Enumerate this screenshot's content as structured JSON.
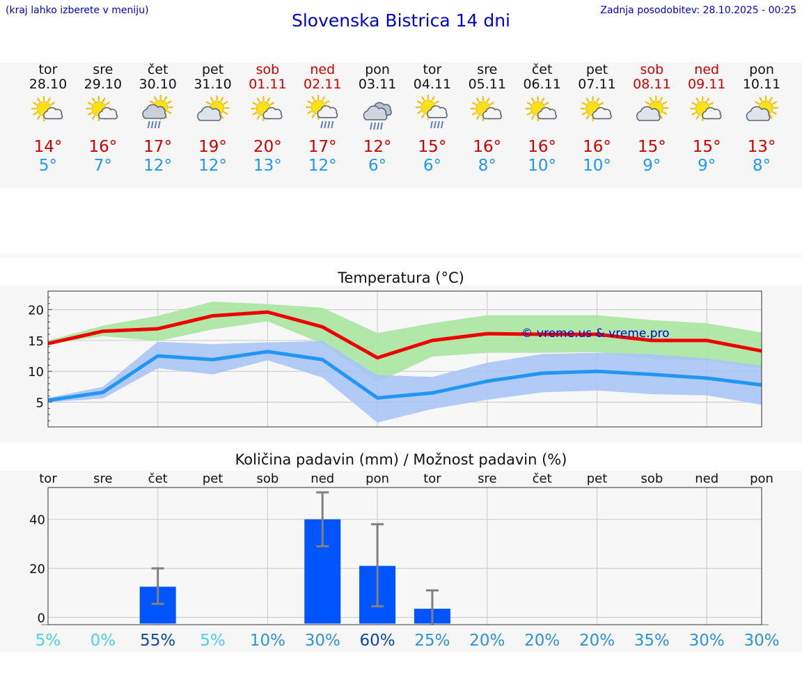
{
  "header": {
    "left_note": "(kraj lahko izberete v meniju)",
    "title": "Slovenska Bistrica 14 dni",
    "updated": "Zadnja posodobitev: 28.10.2025 - 00:25"
  },
  "days": [
    {
      "name": "tor",
      "date": "28.10",
      "icon": "sun-cloud-icon",
      "max": "14°",
      "min": "5°",
      "weekend": false
    },
    {
      "name": "sre",
      "date": "29.10",
      "icon": "sun-cloud-icon",
      "max": "16°",
      "min": "7°",
      "weekend": false
    },
    {
      "name": "čet",
      "date": "30.10",
      "icon": "sun-rain-icon",
      "max": "17°",
      "min": "12°",
      "weekend": false
    },
    {
      "name": "pet",
      "date": "31.10",
      "icon": "cloud-sun-icon",
      "max": "19°",
      "min": "12°",
      "weekend": false
    },
    {
      "name": "sob",
      "date": "01.11",
      "icon": "sun-cloud-icon",
      "max": "20°",
      "min": "13°",
      "weekend": true
    },
    {
      "name": "ned",
      "date": "02.11",
      "icon": "sun-cloud-rain-icon",
      "max": "17°",
      "min": "12°",
      "weekend": true
    },
    {
      "name": "pon",
      "date": "03.11",
      "icon": "cloud-rain-icon",
      "max": "12°",
      "min": "6°",
      "weekend": false
    },
    {
      "name": "tor",
      "date": "04.11",
      "icon": "sun-cloud-rain-icon",
      "max": "15°",
      "min": "6°",
      "weekend": false
    },
    {
      "name": "sre",
      "date": "05.11",
      "icon": "sun-cloud-icon",
      "max": "16°",
      "min": "8°",
      "weekend": false
    },
    {
      "name": "čet",
      "date": "06.11",
      "icon": "sun-cloud-icon",
      "max": "16°",
      "min": "10°",
      "weekend": false
    },
    {
      "name": "pet",
      "date": "07.11",
      "icon": "sun-cloud-icon",
      "max": "16°",
      "min": "10°",
      "weekend": false
    },
    {
      "name": "sob",
      "date": "08.11",
      "icon": "cloud-sun-icon",
      "max": "15°",
      "min": "9°",
      "weekend": true
    },
    {
      "name": "ned",
      "date": "09.11",
      "icon": "sun-cloud-icon",
      "max": "15°",
      "min": "9°",
      "weekend": true
    },
    {
      "name": "pon",
      "date": "10.11",
      "icon": "cloud-sun-icon",
      "max": "13°",
      "min": "8°",
      "weekend": false
    }
  ],
  "colors": {
    "max_line": "#ee0000",
    "min_line": "#2196f3",
    "max_band": "#a8e6a0",
    "min_band": "#a9c4f5",
    "bar": "#0055ff",
    "whisker": "#808080",
    "title": "#0000cc"
  },
  "chart_data": [
    {
      "type": "line",
      "title": "Temperatura (°C)",
      "watermark": "© vreme.us & vreme.pro",
      "x": [
        0,
        1,
        2,
        3,
        4,
        5,
        6,
        7,
        8,
        9,
        10,
        11,
        12,
        13
      ],
      "ylim": [
        1,
        23
      ],
      "yticks": [
        5,
        10,
        15,
        20
      ],
      "series": [
        {
          "name": "max",
          "values": [
            14.5,
            16.5,
            16.9,
            19.0,
            19.6,
            17.2,
            12.2,
            15.0,
            16.1,
            16.0,
            16.0,
            15.0,
            15.0,
            13.3
          ],
          "band_low": [
            14.4,
            15.7,
            14.9,
            16.8,
            18.1,
            14.5,
            8.2,
            12.4,
            13.0,
            13.0,
            13.1,
            12.0,
            11.8,
            10.5
          ],
          "band_high": [
            15.0,
            17.4,
            19.0,
            21.3,
            20.9,
            20.3,
            16.2,
            17.8,
            19.1,
            19.1,
            19.1,
            18.3,
            17.8,
            16.3
          ]
        },
        {
          "name": "min",
          "values": [
            5.3,
            6.6,
            12.5,
            11.9,
            13.2,
            11.9,
            5.7,
            6.5,
            8.4,
            9.7,
            10.0,
            9.5,
            8.9,
            7.8
          ],
          "band_low": [
            5.0,
            5.6,
            10.5,
            9.5,
            11.8,
            9.0,
            1.7,
            3.9,
            5.4,
            6.6,
            6.9,
            6.3,
            6.1,
            4.6
          ],
          "band_high": [
            5.7,
            7.5,
            14.8,
            14.4,
            14.7,
            14.9,
            9.4,
            9.1,
            11.4,
            12.8,
            13.0,
            12.8,
            12.1,
            10.9
          ]
        }
      ]
    },
    {
      "type": "bar",
      "title": "Količina padavin (mm) / Možnost padavin (%)",
      "categories": [
        "tor",
        "sre",
        "čet",
        "pet",
        "sob",
        "ned",
        "pon",
        "tor",
        "sre",
        "čet",
        "pet",
        "sob",
        "ned",
        "pon"
      ],
      "values": [
        0,
        0,
        12.5,
        0,
        0,
        40,
        21,
        3.5,
        0,
        0,
        0,
        0,
        0,
        0
      ],
      "error_low": [
        0,
        0,
        5.5,
        0,
        0,
        29,
        4.5,
        0,
        0,
        0,
        0,
        0,
        0,
        0
      ],
      "error_high": [
        0,
        0,
        20,
        0,
        0,
        51,
        38,
        11,
        0,
        0,
        0,
        0,
        0,
        0
      ],
      "ylim": [
        -3,
        53
      ],
      "yticks": [
        0,
        20,
        40
      ],
      "probability": [
        "5%",
        "0%",
        "55%",
        "5%",
        "10%",
        "30%",
        "60%",
        "25%",
        "20%",
        "20%",
        "20%",
        "35%",
        "30%",
        "30%"
      ],
      "probability_colors": [
        "#4dd0e1",
        "#4dd0e1",
        "#0d47a1",
        "#4dd0e1",
        "#2e93d1",
        "#2e93d1",
        "#0d47a1",
        "#2e93d1",
        "#2e93d1",
        "#2e93d1",
        "#2e93d1",
        "#2e93d1",
        "#2e93d1",
        "#2e93d1"
      ]
    }
  ]
}
